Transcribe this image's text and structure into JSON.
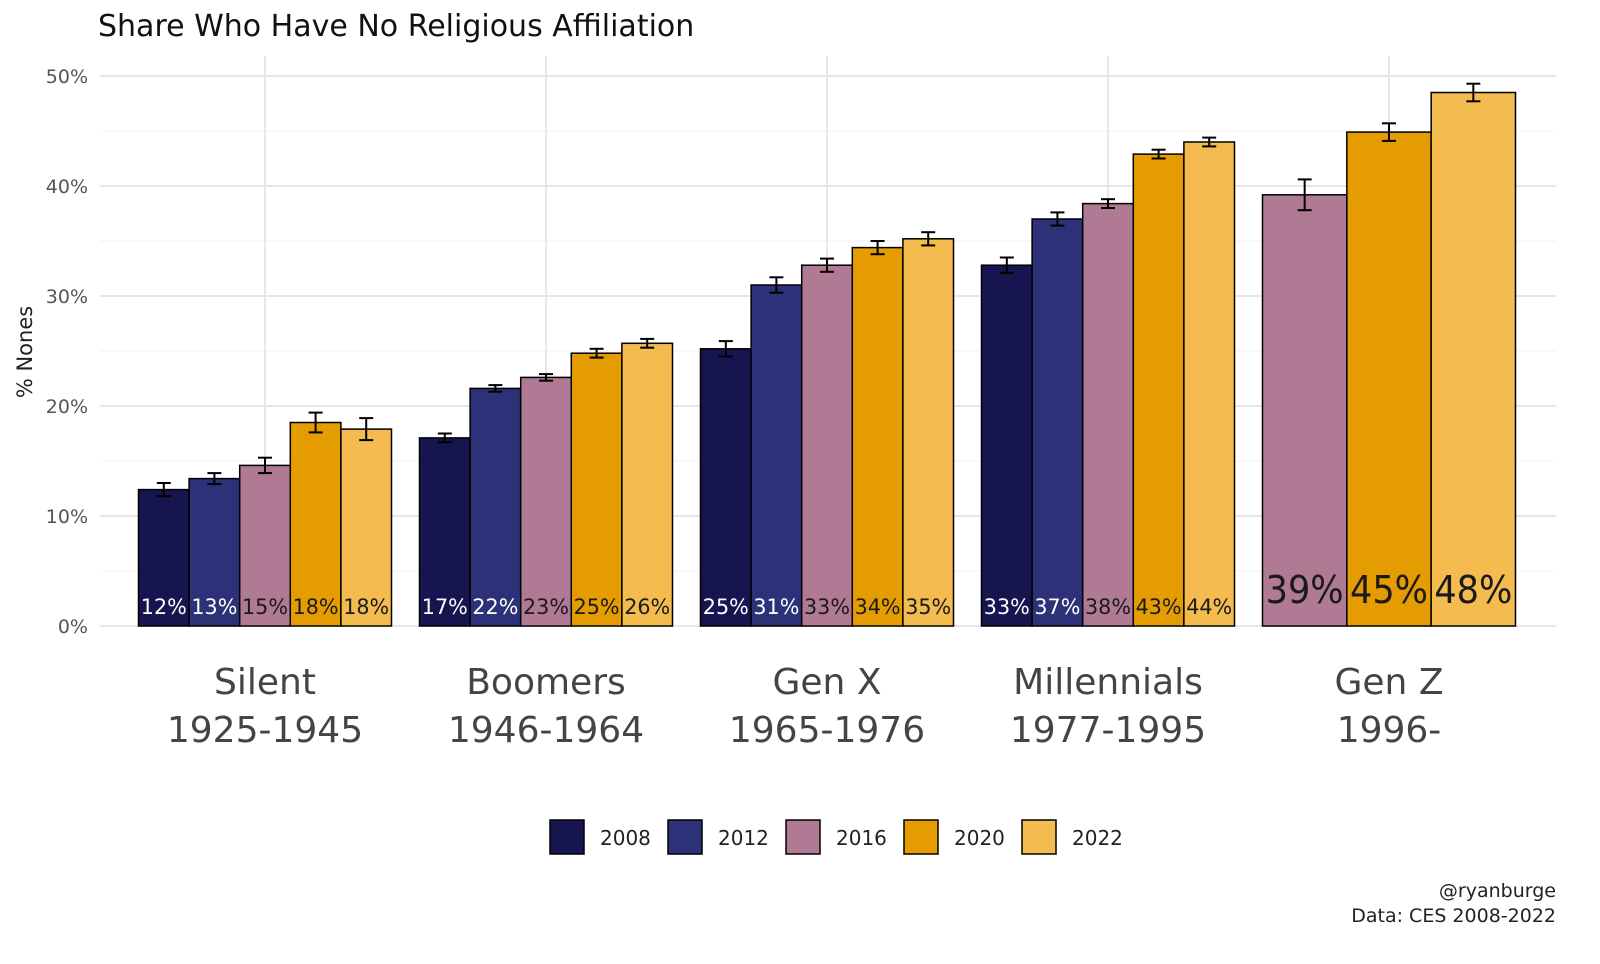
{
  "chart_data": {
    "type": "bar",
    "title": "Share Who Have No Religious Affiliation",
    "xlabel": "",
    "ylabel": "% Nones",
    "ylim": [
      0,
      50
    ],
    "yticks": [
      "0%",
      "10%",
      "20%",
      "30%",
      "40%",
      "50%"
    ],
    "ytick_values": [
      0,
      10,
      20,
      30,
      40,
      50
    ],
    "grid": true,
    "legend_position": "bottom",
    "categories": [
      {
        "label_line1": "Silent",
        "label_line2": "1925-1945"
      },
      {
        "label_line1": "Boomers",
        "label_line2": "1946-1964"
      },
      {
        "label_line1": "Gen X",
        "label_line2": "1965-1976"
      },
      {
        "label_line1": "Millennials",
        "label_line2": "1977-1995"
      },
      {
        "label_line1": "Gen Z",
        "label_line2": "1996-"
      }
    ],
    "series": [
      {
        "name": "2008",
        "color": "#16154f",
        "label_color": "#ffffff",
        "values": [
          12.4,
          17.1,
          25.2,
          32.8,
          null
        ],
        "errors": [
          0.6,
          0.4,
          0.7,
          0.7,
          null
        ],
        "labels": [
          "12%",
          "17%",
          "25%",
          "33%",
          null
        ]
      },
      {
        "name": "2012",
        "color": "#2d3278",
        "label_color": "#ffffff",
        "values": [
          13.4,
          21.6,
          31.0,
          37.0,
          null
        ],
        "errors": [
          0.5,
          0.3,
          0.7,
          0.6,
          null
        ],
        "labels": [
          "13%",
          "22%",
          "31%",
          "37%",
          null
        ]
      },
      {
        "name": "2016",
        "color": "#b07994",
        "label_color": "#1a1a1a",
        "values": [
          14.6,
          22.6,
          32.8,
          38.4,
          39.2
        ],
        "errors": [
          0.7,
          0.3,
          0.6,
          0.4,
          1.4
        ],
        "labels": [
          "15%",
          "23%",
          "33%",
          "38%",
          "39%"
        ]
      },
      {
        "name": "2020",
        "color": "#e59c00",
        "label_color": "#1a1a1a",
        "values": [
          18.5,
          24.8,
          34.4,
          42.9,
          44.9
        ],
        "errors": [
          0.9,
          0.4,
          0.6,
          0.4,
          0.8
        ],
        "labels": [
          "18%",
          "25%",
          "34%",
          "43%",
          "45%"
        ]
      },
      {
        "name": "2022",
        "color": "#f4bb4f",
        "label_color": "#1a1a1a",
        "values": [
          17.9,
          25.7,
          35.2,
          44.0,
          48.5
        ],
        "errors": [
          1.0,
          0.4,
          0.6,
          0.4,
          0.8
        ],
        "labels": [
          "18%",
          "26%",
          "35%",
          "44%",
          "48%"
        ]
      }
    ],
    "caption_line1": "@ryanburge",
    "caption_line2": "Data: CES 2008-2022"
  }
}
